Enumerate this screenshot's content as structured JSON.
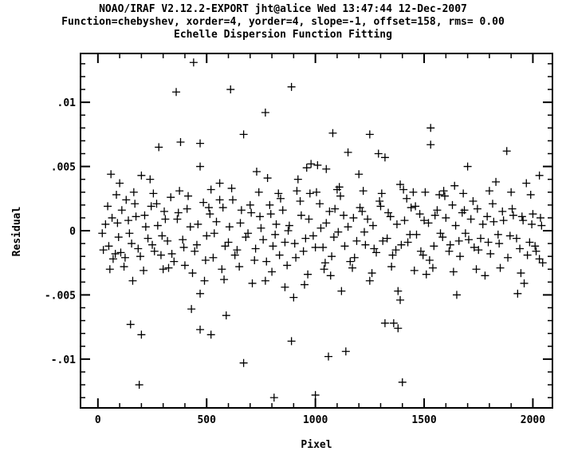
{
  "header": {
    "line1": "NOAO/IRAF V2.12.2-EXPORT jht@alice Wed 13:47:44 12-Dec-2007",
    "line2": "Function=chebyshev, xorder=4, yorder=4, slope=-1, offset=158, rms= 0.00",
    "line3": "Echelle Dispersion Function Fitting"
  },
  "chart_data": {
    "type": "scatter",
    "marker": "plus",
    "xlabel": "Pixel",
    "ylabel": "Residual",
    "xlim": [
      -80,
      2090
    ],
    "ylim": [
      -0.0138,
      0.0138
    ],
    "xticks": [
      0,
      500,
      1000,
      1500,
      2000
    ],
    "xtick_labels": [
      "0",
      "500",
      "1000",
      "1500",
      "2000"
    ],
    "yticks": [
      -0.01,
      -0.005,
      0,
      0.005,
      0.01
    ],
    "ytick_labels": [
      "-.01",
      "-.005",
      "0",
      ".005",
      ".01"
    ],
    "grid": false,
    "points": [
      [
        440,
        0.0131
      ],
      [
        890,
        0.0112
      ],
      [
        360,
        0.0108
      ],
      [
        610,
        0.011
      ],
      [
        770,
        0.0092
      ],
      [
        1530,
        0.008
      ],
      [
        1530,
        0.0067
      ],
      [
        1880,
        0.0062
      ],
      [
        1150,
        0.0061
      ],
      [
        1250,
        0.0075
      ],
      [
        1320,
        0.0057
      ],
      [
        1080,
        0.0076
      ],
      [
        670,
        0.0075
      ],
      [
        380,
        0.0069
      ],
      [
        470,
        0.0068
      ],
      [
        280,
        0.0065
      ],
      [
        980,
        0.0052
      ],
      [
        1700,
        0.005
      ],
      [
        1010,
        0.0051
      ],
      [
        1290,
        0.006
      ],
      [
        60,
        0.0044
      ],
      [
        200,
        0.0043
      ],
      [
        730,
        0.0046
      ],
      [
        470,
        0.005
      ],
      [
        2030,
        0.0043
      ],
      [
        1390,
        0.0036
      ],
      [
        1640,
        0.0035
      ],
      [
        1830,
        0.0038
      ],
      [
        1970,
        0.0037
      ],
      [
        100,
        0.0037
      ],
      [
        240,
        0.004
      ],
      [
        560,
        0.0037
      ],
      [
        920,
        0.004
      ],
      [
        780,
        0.0041
      ],
      [
        960,
        0.0049
      ],
      [
        1050,
        0.0048
      ],
      [
        1450,
        0.003
      ],
      [
        1570,
        0.0028
      ],
      [
        1110,
        0.0034
      ],
      [
        1200,
        0.0044
      ],
      [
        150,
        -0.0073
      ],
      [
        200,
        -0.0081
      ],
      [
        430,
        -0.0061
      ],
      [
        470,
        -0.0077
      ],
      [
        520,
        -0.0081
      ],
      [
        590,
        -0.0066
      ],
      [
        670,
        -0.0103
      ],
      [
        190,
        -0.012
      ],
      [
        810,
        -0.013
      ],
      [
        890,
        -0.0086
      ],
      [
        1000,
        -0.0128
      ],
      [
        1060,
        -0.0098
      ],
      [
        1140,
        -0.0094
      ],
      [
        1320,
        -0.0072
      ],
      [
        1360,
        -0.0072
      ],
      [
        1380,
        -0.0076
      ],
      [
        1400,
        -0.0118
      ],
      [
        1650,
        -0.005
      ],
      [
        1930,
        -0.0049
      ],
      [
        1250,
        -0.0039
      ],
      [
        1380,
        -0.0047
      ],
      [
        1390,
        -0.0054
      ],
      [
        860,
        -0.0044
      ],
      [
        900,
        -0.0052
      ],
      [
        950,
        -0.0042
      ],
      [
        1070,
        -0.0035
      ],
      [
        1120,
        -0.0047
      ],
      [
        580,
        -0.0038
      ],
      [
        490,
        -0.0039
      ],
      [
        470,
        -0.0049
      ],
      [
        160,
        -0.0039
      ],
      [
        400,
        -0.0027
      ],
      [
        710,
        -0.0041
      ],
      [
        770,
        -0.0039
      ],
      [
        1510,
        -0.0034
      ],
      [
        1780,
        -0.0035
      ],
      [
        1960,
        -0.0041
      ],
      [
        2030,
        -0.0022
      ],
      [
        300,
        -0.003
      ],
      [
        350,
        -0.0024
      ],
      [
        20,
        -0.0002
      ],
      [
        35,
        0.0005
      ],
      [
        50,
        -0.0012
      ],
      [
        65,
        0.001
      ],
      [
        80,
        -0.0018
      ],
      [
        95,
        -0.0005
      ],
      [
        110,
        0.0016
      ],
      [
        125,
        -0.0021
      ],
      [
        140,
        0.0008
      ],
      [
        155,
        -0.001
      ],
      [
        170,
        0.0021
      ],
      [
        185,
        -0.0014
      ],
      [
        215,
        0.0012
      ],
      [
        230,
        -0.0006
      ],
      [
        245,
        0.0019
      ],
      [
        260,
        -0.0016
      ],
      [
        275,
        0.0004
      ],
      [
        290,
        -0.0019
      ],
      [
        305,
        0.0015
      ],
      [
        320,
        -0.0008
      ],
      [
        335,
        0.0026
      ],
      [
        365,
        0.0009
      ],
      [
        395,
        -0.0013
      ],
      [
        410,
        0.0017
      ],
      [
        425,
        0.0003
      ],
      [
        455,
        -0.0011
      ],
      [
        485,
        0.0022
      ],
      [
        500,
        -0.0004
      ],
      [
        515,
        0.0013
      ],
      [
        530,
        -0.0021
      ],
      [
        545,
        0.0007
      ],
      [
        575,
        0.0018
      ],
      [
        600,
        -0.0009
      ],
      [
        620,
        0.0024
      ],
      [
        640,
        -0.0015
      ],
      [
        655,
        0.0006
      ],
      [
        690,
        -0.0002
      ],
      [
        705,
        0.0014
      ],
      [
        720,
        -0.0023
      ],
      [
        745,
        0.0011
      ],
      [
        760,
        -0.0007
      ],
      [
        790,
        0.002
      ],
      [
        805,
        -0.0012
      ],
      [
        820,
        0.0005
      ],
      [
        835,
        -0.0019
      ],
      [
        850,
        0.0016
      ],
      [
        875,
        0.0
      ],
      [
        905,
        -0.001
      ],
      [
        930,
        0.0023
      ],
      [
        945,
        -0.0016
      ],
      [
        970,
        0.0009
      ],
      [
        990,
        -0.0004
      ],
      [
        1020,
        0.0021
      ],
      [
        1035,
        -0.0013
      ],
      [
        1050,
        0.0006
      ],
      [
        1075,
        -0.002
      ],
      [
        1090,
        0.0017
      ],
      [
        1105,
        -0.0001
      ],
      [
        1130,
        0.0012
      ],
      [
        1160,
        -0.0024
      ],
      [
        1175,
        0.001
      ],
      [
        1190,
        -0.0008
      ],
      [
        1215,
        0.0015
      ],
      [
        1230,
        -0.0011
      ],
      [
        1265,
        0.0004
      ],
      [
        1280,
        -0.0017
      ],
      [
        1300,
        0.0019
      ],
      [
        1330,
        -0.0006
      ],
      [
        1345,
        0.0011
      ],
      [
        1370,
        -0.0015
      ],
      [
        1410,
        0.0008
      ],
      [
        1425,
        -0.0009
      ],
      [
        1440,
        0.0018
      ],
      [
        1465,
        -0.0003
      ],
      [
        1480,
        0.0013
      ],
      [
        1495,
        -0.0019
      ],
      [
        1520,
        0.0006
      ],
      [
        1545,
        -0.0012
      ],
      [
        1560,
        0.0016
      ],
      [
        1585,
        -0.0005
      ],
      [
        1600,
        0.001
      ],
      [
        1615,
        -0.0016
      ],
      [
        1630,
        0.002
      ],
      [
        1660,
        -0.0008
      ],
      [
        1675,
        0.0014
      ],
      [
        1690,
        -0.0002
      ],
      [
        1715,
        0.0009
      ],
      [
        1730,
        -0.0013
      ],
      [
        1745,
        0.0017
      ],
      [
        1760,
        -0.0006
      ],
      [
        1790,
        0.0011
      ],
      [
        1805,
        -0.0018
      ],
      [
        1820,
        0.0007
      ],
      [
        1845,
        -0.001
      ],
      [
        1860,
        0.0015
      ],
      [
        1895,
        -0.0004
      ],
      [
        1910,
        0.0012
      ],
      [
        1940,
        -0.0014
      ],
      [
        1955,
        0.0008
      ],
      [
        1985,
        -0.0009
      ],
      [
        2000,
        0.0013
      ],
      [
        2015,
        -0.0016
      ],
      [
        2040,
        0.0004
      ],
      [
        25,
        -0.0015
      ],
      [
        45,
        0.0019
      ],
      [
        70,
        -0.0022
      ],
      [
        90,
        0.0006
      ],
      [
        105,
        -0.0017
      ],
      [
        130,
        0.0024
      ],
      [
        145,
        -0.0002
      ],
      [
        175,
        0.0011
      ],
      [
        195,
        -0.002
      ],
      [
        220,
        0.0003
      ],
      [
        250,
        -0.0011
      ],
      [
        270,
        0.0021
      ],
      [
        295,
        -0.0004
      ],
      [
        310,
        0.0009
      ],
      [
        340,
        -0.0018
      ],
      [
        370,
        0.0014
      ],
      [
        390,
        -0.0007
      ],
      [
        415,
        0.0027
      ],
      [
        445,
        -0.0016
      ],
      [
        460,
        0.0005
      ],
      [
        495,
        -0.0023
      ],
      [
        510,
        0.0018
      ],
      [
        535,
        -0.0002
      ],
      [
        560,
        0.0024
      ],
      [
        585,
        -0.0012
      ],
      [
        605,
        0.0003
      ],
      [
        630,
        -0.0019
      ],
      [
        660,
        0.0016
      ],
      [
        680,
        -0.0005
      ],
      [
        700,
        0.002
      ],
      [
        725,
        -0.0014
      ],
      [
        750,
        0.0002
      ],
      [
        775,
        -0.0024
      ],
      [
        795,
        0.0013
      ],
      [
        815,
        -0.0003
      ],
      [
        840,
        0.0025
      ],
      [
        860,
        -0.0009
      ],
      [
        880,
        0.0004
      ],
      [
        910,
        -0.0021
      ],
      [
        935,
        0.0012
      ],
      [
        955,
        -0.0006
      ],
      [
        975,
        0.0029
      ],
      [
        1000,
        -0.0013
      ],
      [
        1025,
        0.0002
      ],
      [
        1045,
        -0.0025
      ],
      [
        1065,
        0.0015
      ],
      [
        1085,
        -0.0005
      ],
      [
        1115,
        0.0027
      ],
      [
        1135,
        -0.0012
      ],
      [
        1150,
        0.0003
      ],
      [
        1180,
        -0.0021
      ],
      [
        1205,
        0.0018
      ],
      [
        1225,
        -0.0001
      ],
      [
        1240,
        0.0009
      ],
      [
        1270,
        -0.0014
      ],
      [
        1295,
        0.0023
      ],
      [
        1310,
        -0.0008
      ],
      [
        1335,
        0.0014
      ],
      [
        1355,
        -0.0019
      ],
      [
        1375,
        0.0005
      ],
      [
        1395,
        -0.0011
      ],
      [
        1420,
        0.0025
      ],
      [
        1435,
        -0.0003
      ],
      [
        1460,
        0.0019
      ],
      [
        1485,
        -0.0016
      ],
      [
        1500,
        0.0008
      ],
      [
        1525,
        -0.0023
      ],
      [
        1550,
        0.0012
      ],
      [
        1575,
        -0.0002
      ],
      [
        1595,
        0.0027
      ],
      [
        1620,
        -0.0011
      ],
      [
        1645,
        0.0004
      ],
      [
        1665,
        -0.002
      ],
      [
        1685,
        0.0016
      ],
      [
        1705,
        -0.0007
      ],
      [
        1725,
        0.0023
      ],
      [
        1750,
        -0.0015
      ],
      [
        1770,
        0.0005
      ],
      [
        1795,
        -0.0009
      ],
      [
        1815,
        0.0021
      ],
      [
        1840,
        -0.0003
      ],
      [
        1865,
        0.0008
      ],
      [
        1885,
        -0.0021
      ],
      [
        1905,
        0.0017
      ],
      [
        1925,
        -0.0006
      ],
      [
        1950,
        0.0011
      ],
      [
        1975,
        -0.0019
      ],
      [
        1995,
        0.0005
      ],
      [
        2010,
        -0.0012
      ],
      [
        2035,
        0.001
      ],
      [
        55,
        -0.003
      ],
      [
        85,
        0.0028
      ],
      [
        120,
        -0.0028
      ],
      [
        165,
        0.003
      ],
      [
        210,
        -0.0031
      ],
      [
        255,
        0.0029
      ],
      [
        325,
        -0.0029
      ],
      [
        375,
        0.0031
      ],
      [
        435,
        -0.0033
      ],
      [
        520,
        0.0032
      ],
      [
        570,
        -0.003
      ],
      [
        615,
        0.0033
      ],
      [
        650,
        -0.0028
      ],
      [
        740,
        0.003
      ],
      [
        800,
        -0.0032
      ],
      [
        830,
        0.0029
      ],
      [
        870,
        -0.0027
      ],
      [
        915,
        0.0031
      ],
      [
        965,
        -0.0034
      ],
      [
        1005,
        0.003
      ],
      [
        1040,
        -0.003
      ],
      [
        1100,
        0.0032
      ],
      [
        1170,
        -0.0029
      ],
      [
        1220,
        0.0031
      ],
      [
        1260,
        -0.0033
      ],
      [
        1305,
        0.0029
      ],
      [
        1350,
        -0.0028
      ],
      [
        1405,
        0.0032
      ],
      [
        1455,
        -0.0031
      ],
      [
        1505,
        0.003
      ],
      [
        1540,
        -0.0029
      ],
      [
        1590,
        0.0031
      ],
      [
        1635,
        -0.0032
      ],
      [
        1680,
        0.0029
      ],
      [
        1740,
        -0.003
      ],
      [
        1800,
        0.0031
      ],
      [
        1850,
        -0.0029
      ],
      [
        1900,
        0.003
      ],
      [
        1945,
        -0.0033
      ],
      [
        1990,
        0.0028
      ],
      [
        2045,
        -0.0025
      ]
    ]
  }
}
